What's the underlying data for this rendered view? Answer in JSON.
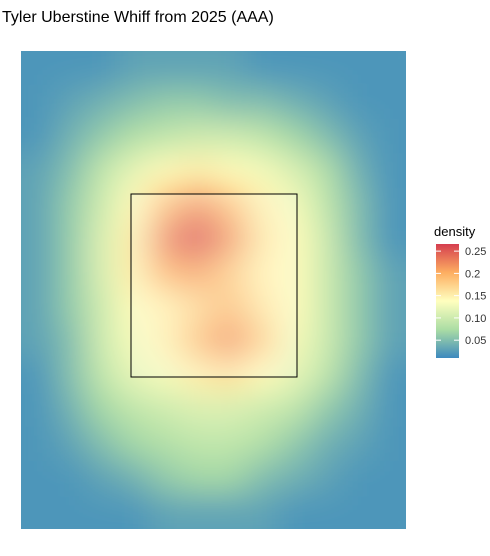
{
  "chart_data": {
    "type": "heatmap",
    "title": "Tyler Uberstine Whiff from 2025 (AAA)",
    "legend_title": "density",
    "colors": [
      "#3d89be",
      "#abdda4",
      "#ffffbf",
      "#fdae61",
      "#d53e4f"
    ],
    "clim": [
      0.01,
      0.266
    ],
    "cticks": [
      0.05,
      {
        "value": 0.1,
        "label": "0.10"
      },
      0.15,
      0.2,
      0.25
    ],
    "z": [
      [
        0.02,
        0.02,
        0.02,
        0.03,
        0.03,
        0.03,
        0.03,
        0.02,
        0.02,
        0.02,
        0.02,
        0.02
      ],
      [
        0.02,
        0.03,
        0.04,
        0.05,
        0.06,
        0.06,
        0.05,
        0.05,
        0.04,
        0.03,
        0.02,
        0.02
      ],
      [
        0.02,
        0.04,
        0.06,
        0.08,
        0.09,
        0.1,
        0.1,
        0.09,
        0.07,
        0.05,
        0.03,
        0.02
      ],
      [
        0.03,
        0.05,
        0.09,
        0.12,
        0.14,
        0.15,
        0.14,
        0.13,
        0.11,
        0.08,
        0.04,
        0.02
      ],
      [
        0.03,
        0.06,
        0.1,
        0.14,
        0.19,
        0.22,
        0.19,
        0.15,
        0.13,
        0.09,
        0.05,
        0.02
      ],
      [
        0.03,
        0.06,
        0.11,
        0.15,
        0.23,
        0.26,
        0.22,
        0.16,
        0.14,
        0.1,
        0.05,
        0.02
      ],
      [
        0.03,
        0.06,
        0.11,
        0.15,
        0.2,
        0.21,
        0.18,
        0.15,
        0.14,
        0.1,
        0.06,
        0.03
      ],
      [
        0.03,
        0.06,
        0.1,
        0.14,
        0.15,
        0.17,
        0.19,
        0.16,
        0.14,
        0.1,
        0.06,
        0.03
      ],
      [
        0.03,
        0.05,
        0.1,
        0.13,
        0.15,
        0.19,
        0.22,
        0.18,
        0.13,
        0.1,
        0.06,
        0.03
      ],
      [
        0.02,
        0.05,
        0.09,
        0.12,
        0.13,
        0.15,
        0.16,
        0.14,
        0.12,
        0.09,
        0.05,
        0.02
      ],
      [
        0.02,
        0.04,
        0.07,
        0.09,
        0.1,
        0.11,
        0.11,
        0.1,
        0.09,
        0.06,
        0.04,
        0.02
      ],
      [
        0.02,
        0.03,
        0.05,
        0.07,
        0.08,
        0.09,
        0.09,
        0.08,
        0.06,
        0.04,
        0.03,
        0.02
      ],
      [
        0.02,
        0.02,
        0.03,
        0.04,
        0.06,
        0.07,
        0.07,
        0.05,
        0.04,
        0.03,
        0.02,
        0.02
      ],
      [
        0.02,
        0.02,
        0.02,
        0.02,
        0.03,
        0.03,
        0.03,
        0.03,
        0.02,
        0.02,
        0.02,
        0.02
      ]
    ]
  }
}
